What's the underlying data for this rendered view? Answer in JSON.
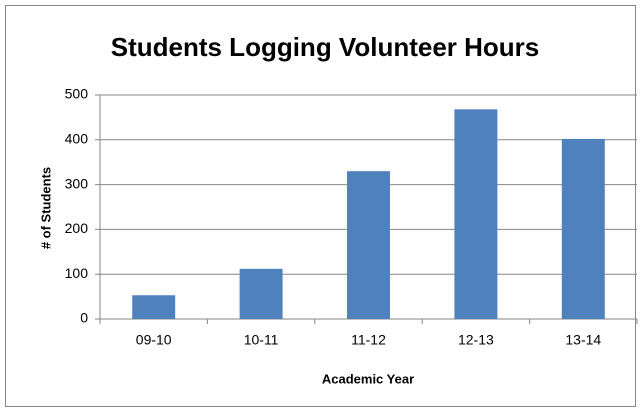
{
  "chart_data": {
    "type": "bar",
    "title": "Students Logging Volunteer Hours",
    "x_label": "Academic Year",
    "y_label": "# of Students",
    "categories": [
      "09-10",
      "10-11",
      "11-12",
      "12-13",
      "13-14"
    ],
    "values": [
      53,
      112,
      330,
      468,
      402
    ],
    "color": "#4f81bd",
    "ylim": [
      0,
      500
    ],
    "yticks": [
      0,
      100,
      200,
      300,
      400,
      500
    ],
    "grid": true
  }
}
